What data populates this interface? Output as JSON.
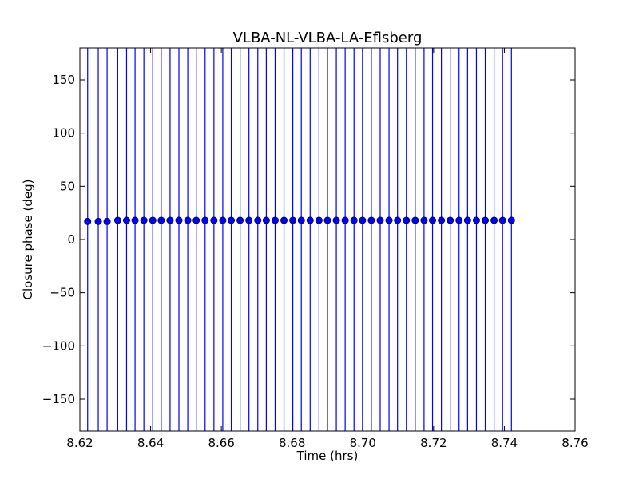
{
  "chart_data": {
    "type": "scatter",
    "title": "VLBA-NL-VLBA-LA-Eflsberg",
    "xlabel": "Time (hrs)",
    "ylabel": "Closure phase (deg)",
    "xlim": [
      8.62,
      8.76
    ],
    "ylim": [
      -180,
      180
    ],
    "xticks": [
      "8.62",
      "8.64",
      "8.66",
      "8.68",
      "8.70",
      "8.72",
      "8.74",
      "8.76"
    ],
    "yticks": [
      "150",
      "100",
      "50",
      "0",
      "−50",
      "−100",
      "−150"
    ],
    "ytick_values": [
      150,
      100,
      50,
      0,
      -50,
      -100,
      -150
    ],
    "xtick_values": [
      8.62,
      8.64,
      8.66,
      8.68,
      8.7,
      8.72,
      8.74,
      8.76
    ],
    "grid": false,
    "marker_color": "#0000ff",
    "errorbar_color": "#0000ff",
    "series": [
      {
        "x": [
          8.6222,
          8.6252,
          8.6277,
          8.6307,
          8.6332,
          8.6356,
          8.6381,
          8.6406,
          8.643,
          8.6455,
          8.648,
          8.6505,
          8.6529,
          8.6554,
          8.6579,
          8.6604,
          8.6628,
          8.6653,
          8.6678,
          8.6703,
          8.6727,
          8.6752,
          8.6777,
          8.6802,
          8.6826,
          8.6851,
          8.6876,
          8.69,
          8.6925,
          8.695,
          8.6975,
          8.6999,
          8.7024,
          8.7049,
          8.7074,
          8.7098,
          8.7123,
          8.7148,
          8.7173,
          8.7197,
          8.7222,
          8.7247,
          8.7272,
          8.7296,
          8.7321,
          8.7346,
          8.7371,
          8.7395,
          8.742
        ],
        "y": [
          17,
          17,
          17,
          18,
          18,
          18,
          18,
          18,
          18,
          18,
          18,
          18,
          18,
          18,
          18,
          18,
          18,
          18,
          18,
          18,
          18,
          18,
          18,
          18,
          18,
          18,
          18,
          18,
          18,
          18,
          18,
          18,
          18,
          18,
          18,
          18,
          18,
          18,
          18,
          18,
          18,
          18,
          18,
          18,
          18,
          18,
          18,
          18,
          18
        ],
        "yerr_low": -180,
        "yerr_high": 180
      }
    ]
  }
}
